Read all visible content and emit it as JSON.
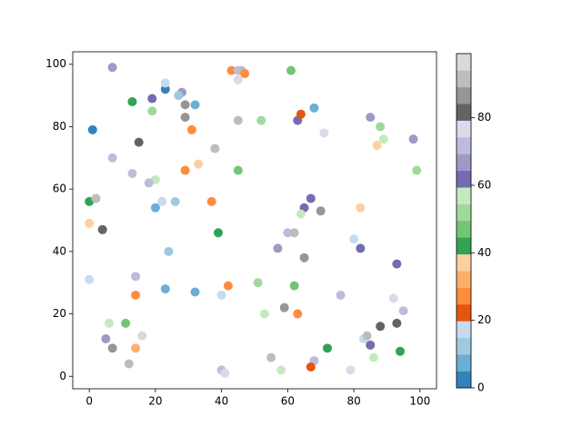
{
  "chart_data": {
    "type": "scatter",
    "x": [
      1,
      7,
      19,
      23,
      23,
      28,
      27,
      29,
      32,
      13,
      19,
      29,
      31,
      15,
      7,
      38,
      33,
      29,
      13,
      20,
      18,
      20,
      22,
      26,
      37,
      0,
      2,
      0,
      4,
      39,
      24,
      0,
      14,
      14,
      23,
      32,
      40,
      42,
      6,
      11,
      5,
      7,
      16,
      14,
      12,
      40,
      41,
      43,
      45,
      46,
      47,
      45,
      61,
      45,
      52,
      63,
      64,
      68,
      71,
      45,
      85,
      88,
      89,
      87,
      98,
      99,
      67,
      65,
      70,
      64,
      82,
      60,
      62,
      57,
      80,
      82,
      65,
      93,
      51,
      62,
      53,
      59,
      63,
      76,
      92,
      95,
      83,
      84,
      88,
      93,
      85,
      72,
      94,
      86,
      55,
      58,
      68,
      67,
      79
    ],
    "y": [
      79,
      99,
      89,
      92,
      94,
      91,
      90,
      87,
      87,
      88,
      85,
      83,
      79,
      75,
      70,
      73,
      68,
      66,
      65,
      63,
      62,
      54,
      56,
      56,
      56,
      56,
      57,
      49,
      47,
      46,
      40,
      31,
      32,
      26,
      28,
      27,
      26,
      29,
      17,
      17,
      12,
      9,
      13,
      9,
      4,
      2,
      1,
      98,
      98,
      98,
      97,
      95,
      98,
      82,
      82,
      82,
      84,
      86,
      78,
      66,
      83,
      80,
      76,
      74,
      76,
      66,
      57,
      54,
      53,
      52,
      54,
      46,
      46,
      41,
      44,
      41,
      38,
      36,
      30,
      29,
      20,
      22,
      20,
      26,
      25,
      21,
      12,
      13,
      16,
      17,
      10,
      9,
      8,
      6,
      6,
      2,
      5,
      3,
      2
    ],
    "c": [
      2,
      67,
      62,
      2,
      17,
      67,
      12,
      87,
      7,
      42,
      52,
      87,
      27,
      82,
      72,
      92,
      37,
      27,
      72,
      57,
      72,
      7,
      17,
      12,
      27,
      42,
      92,
      37,
      82,
      42,
      12,
      17,
      72,
      27,
      7,
      7,
      17,
      27,
      57,
      47,
      67,
      87,
      97,
      32,
      92,
      72,
      77,
      27,
      72,
      92,
      27,
      77,
      47,
      92,
      52,
      62,
      22,
      7,
      77,
      47,
      67,
      52,
      57,
      37,
      67,
      52,
      62,
      62,
      87,
      57,
      37,
      72,
      92,
      67,
      17,
      62,
      87,
      62,
      52,
      47,
      57,
      87,
      27,
      72,
      77,
      72,
      17,
      92,
      82,
      82,
      62,
      42,
      42,
      57,
      92,
      57,
      72,
      22,
      77
    ],
    "colormap": [
      "#3182bd",
      "#6baed6",
      "#9ecae1",
      "#c6dbef",
      "#e6550d",
      "#fd8d3c",
      "#fdae6b",
      "#fdd0a2",
      "#31a354",
      "#74c476",
      "#a1d99b",
      "#c7e9c0",
      "#756bb1",
      "#9e9ac8",
      "#bcbddc",
      "#dadaeb",
      "#636363",
      "#969696",
      "#bdbdbd",
      "#d9d9d9"
    ],
    "clim": [
      0,
      99
    ],
    "cticks": [
      0,
      20,
      40,
      60,
      80
    ],
    "xlim": [
      -5,
      105
    ],
    "ylim": [
      -4,
      104
    ],
    "xticks": [
      0,
      20,
      40,
      60,
      80,
      100
    ],
    "yticks": [
      0,
      20,
      40,
      60,
      80,
      100
    ]
  }
}
